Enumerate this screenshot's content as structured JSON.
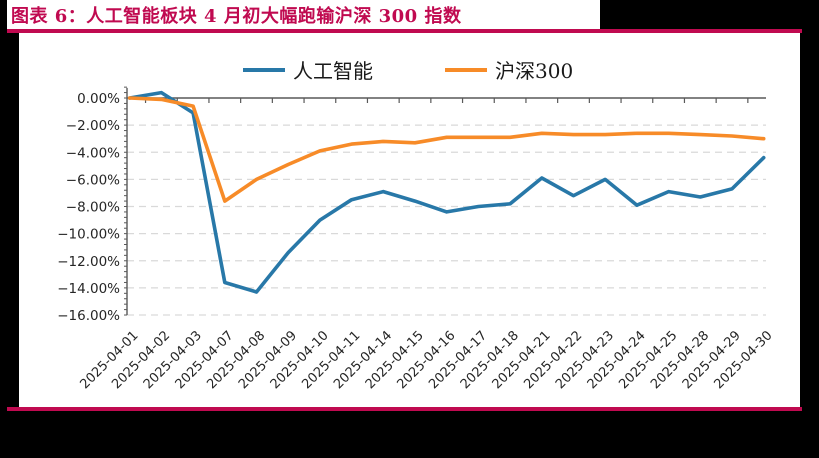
{
  "page": {
    "title": "图表 6：人工智能板块 4 月初大幅跑输沪深 300 指数",
    "accent_color": "#C00A50",
    "background_color": "#000000",
    "panel_color": "#FFFFFF"
  },
  "chart_data": {
    "type": "line",
    "title": "",
    "xlabel": "",
    "ylabel": "",
    "legend_position": "top",
    "grid": "horizontal dashed every 2%",
    "x": [
      "2025-04-01",
      "2025-04-02",
      "2025-04-03",
      "2025-04-07",
      "2025-04-08",
      "2025-04-09",
      "2025-04-10",
      "2025-04-11",
      "2025-04-14",
      "2025-04-15",
      "2025-04-16",
      "2025-04-17",
      "2025-04-18",
      "2025-04-21",
      "2025-04-22",
      "2025-04-23",
      "2025-04-24",
      "2025-04-25",
      "2025-04-28",
      "2025-04-29",
      "2025-04-30"
    ],
    "series": [
      {
        "name": "人工智能",
        "color": "#2878A8",
        "values": [
          0.0,
          0.4,
          -1.1,
          -13.6,
          -14.3,
          -11.4,
          -9.0,
          -7.5,
          -6.9,
          -7.6,
          -8.4,
          -8.0,
          -7.8,
          -5.9,
          -7.2,
          -6.0,
          -7.9,
          -6.9,
          -7.3,
          -6.7,
          -4.4
        ]
      },
      {
        "name": "沪深300",
        "color": "#F78B28",
        "values": [
          0.0,
          -0.1,
          -0.6,
          -7.6,
          -6.0,
          -4.9,
          -3.9,
          -3.4,
          -3.2,
          -3.3,
          -2.9,
          -2.9,
          -2.9,
          -2.6,
          -2.7,
          -2.7,
          -2.6,
          -2.6,
          -2.7,
          -2.8,
          -3.0
        ]
      }
    ],
    "ylim": [
      -16,
      0.8
    ],
    "ytick_values": [
      0,
      -2,
      -4,
      -6,
      -8,
      -10,
      -12,
      -14,
      -16
    ],
    "yticks": [
      "0.00%",
      "−2.00%",
      "−4.00%",
      "−6.00%",
      "−8.00%",
      "−10.00%",
      "−12.00%",
      "−14.00%",
      "−16.00%"
    ],
    "axis_color": "#595959",
    "grid_color": "#D9D9D9",
    "tick_label_color": "#262626"
  }
}
